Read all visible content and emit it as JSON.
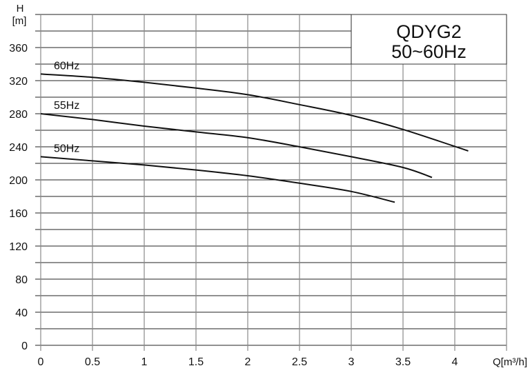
{
  "chart_data": {
    "type": "line",
    "title": "QDYG2",
    "subtitle": "50~60Hz",
    "xlabel": "Q[m³/h]",
    "ylabel_line1": "H",
    "ylabel_line2": "[m]",
    "xlim": [
      0,
      4.5
    ],
    "ylim": [
      0,
      400
    ],
    "xticks": [
      0,
      0.5,
      1,
      1.5,
      2,
      2.5,
      3,
      3.5,
      4
    ],
    "xtick_labels": [
      "0",
      "0.5",
      "1",
      "1.5",
      "2",
      "2.5",
      "3",
      "3.5",
      "4"
    ],
    "yticks": [
      0,
      40,
      80,
      120,
      160,
      200,
      240,
      280,
      320,
      360
    ],
    "ytick_labels": [
      "0",
      "40",
      "80",
      "120",
      "160",
      "200",
      "240",
      "280",
      "320",
      "360"
    ],
    "grid": true,
    "minor_y_step": 20,
    "line_color": "#111111",
    "series": [
      {
        "name": "60Hz",
        "x": [
          0,
          0.5,
          1,
          1.5,
          2,
          2.5,
          3,
          3.5,
          4.13
        ],
        "y": [
          328,
          324,
          318,
          311,
          303,
          291,
          278,
          261,
          235
        ]
      },
      {
        "name": "55Hz",
        "x": [
          0,
          0.5,
          1,
          1.5,
          2,
          2.5,
          3,
          3.5,
          3.78
        ],
        "y": [
          280,
          273,
          265,
          258,
          251,
          240,
          228,
          215,
          203
        ]
      },
      {
        "name": "50Hz",
        "x": [
          0,
          0.5,
          1,
          1.5,
          2,
          2.5,
          3,
          3.42
        ],
        "y": [
          228,
          223,
          218,
          212,
          205,
          196,
          186,
          173
        ]
      }
    ]
  }
}
